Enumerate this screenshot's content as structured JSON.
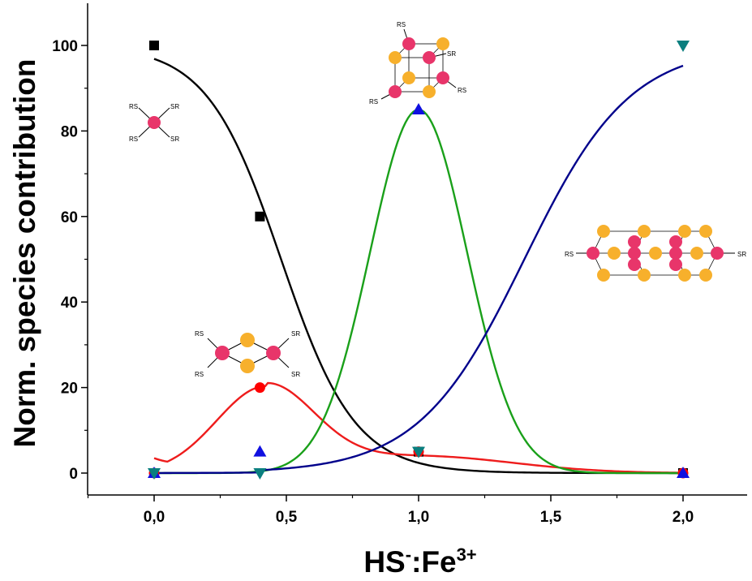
{
  "chart_data": {
    "type": "scatter",
    "ylabel": "Norm. species contribution",
    "xlabel_base": "HS",
    "xlabel_sup1": "-",
    "xlabel_mid": ":Fe",
    "xlabel_sup2": "3+",
    "xlim": [
      -0.25,
      2.25
    ],
    "ylim": [
      -5,
      110
    ],
    "x_ticks": [
      "0,0",
      "0,5",
      "1,0",
      "1,5",
      "2,0"
    ],
    "x_tick_values": [
      0,
      0.5,
      1.0,
      1.5,
      2.0
    ],
    "y_ticks": [
      "0",
      "20",
      "40",
      "60",
      "80",
      "100"
    ],
    "y_tick_values": [
      0,
      20,
      40,
      60,
      80,
      100
    ],
    "grid": false,
    "series": [
      {
        "color": "#000000",
        "marker": "square",
        "x": [
          0,
          0.4,
          1.0,
          2.0
        ],
        "y": [
          100,
          60,
          5,
          0
        ]
      },
      {
        "color": "#ff0000",
        "marker": "circle",
        "x": [
          0,
          0.4,
          1.0,
          2.0
        ],
        "y": [
          0,
          20,
          5,
          0
        ]
      },
      {
        "color": "#1010e0",
        "marker": "triangle-up",
        "x": [
          0,
          0.4,
          1.0,
          2.0
        ],
        "y": [
          0,
          5,
          85,
          0
        ]
      },
      {
        "color": "#0a7f7f",
        "marker": "triangle-down",
        "x": [
          0,
          0.4,
          1.0,
          2.0
        ],
        "y": [
          0,
          0,
          5,
          100
        ]
      }
    ],
    "fit_curves": [
      {
        "color": "#000000",
        "desc": "monomer fit"
      },
      {
        "color": "#ee1c1c",
        "desc": "dimer fit"
      },
      {
        "color": "#1aa01a",
        "desc": "cubane fit"
      },
      {
        "color": "#00008b",
        "desc": "chain fit"
      }
    ],
    "annotations": {
      "rs": "RS",
      "sr": "SR"
    },
    "colors": {
      "iron": "#e8356a",
      "sulfur": "#f7b02c"
    }
  }
}
